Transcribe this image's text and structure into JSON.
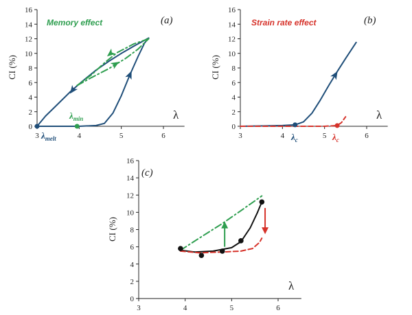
{
  "colors": {
    "blue": "#1f4e79",
    "green": "#2e9e4f",
    "red": "#d6322a",
    "black": "#111111"
  },
  "chart_data": [
    {
      "type": "line",
      "panel_label": "(a)",
      "annotation": "Memory effect",
      "ylabel": "CI (%)",
      "xlabel": "λ",
      "xlim": [
        3,
        6.5
      ],
      "ylim": [
        0,
        16
      ],
      "xticks": [
        "3",
        "4",
        "5",
        "6"
      ],
      "yticks": [
        "0",
        "2",
        "4",
        "6",
        "8",
        "10",
        "12",
        "14",
        "16"
      ],
      "markers": [
        {
          "symbol": "λ",
          "subscript": "melt",
          "x": 3.0,
          "y": 0,
          "color": "blue"
        },
        {
          "symbol": "λ",
          "subscript": "min",
          "x": 3.95,
          "y": 0,
          "color": "green"
        }
      ],
      "series": [
        {
          "style": "solid",
          "color": "blue",
          "x": [
            3.0,
            3.5,
            4.0,
            4.4,
            4.6,
            4.8,
            5.0,
            5.2,
            5.4,
            5.55,
            5.65
          ],
          "y": [
            0,
            0,
            0,
            0.1,
            0.4,
            1.8,
            4.2,
            7.0,
            9.6,
            11.4,
            12.1
          ]
        },
        {
          "style": "solid",
          "color": "blue",
          "x": [
            5.65,
            5.3,
            5.0,
            4.7,
            4.4,
            4.1,
            3.8,
            3.5,
            3.2,
            3.0
          ],
          "y": [
            12.1,
            11.0,
            10.0,
            8.9,
            7.7,
            6.3,
            4.8,
            3.1,
            1.4,
            0
          ]
        },
        {
          "style": "dashdot",
          "color": "green",
          "x": [
            3.95,
            4.3,
            4.7,
            5.1,
            5.4,
            5.65
          ],
          "y": [
            5.6,
            6.7,
            7.9,
            9.3,
            10.6,
            12.0
          ]
        },
        {
          "style": "dashdot",
          "color": "green",
          "x": [
            5.65,
            5.3,
            4.9,
            4.6,
            4.3,
            3.95
          ],
          "y": [
            12.0,
            11.3,
            10.1,
            8.7,
            7.1,
            5.6
          ]
        }
      ]
    },
    {
      "type": "line",
      "panel_label": "(b)",
      "annotation": "Strain rate effect",
      "ylabel": "CI (%)",
      "xlabel": "λ",
      "xlim": [
        3,
        6.5
      ],
      "ylim": [
        0,
        16
      ],
      "xticks": [
        "3",
        "4",
        "5",
        "6"
      ],
      "yticks": [
        "0",
        "2",
        "4",
        "6",
        "8",
        "10",
        "12",
        "14",
        "16"
      ],
      "markers": [
        {
          "symbol": "λ",
          "subscript": "c",
          "x": 4.3,
          "y": 0.2,
          "color": "blue"
        },
        {
          "symbol": "λ",
          "subscript": "c",
          "x": 5.3,
          "y": 0.1,
          "color": "red"
        }
      ],
      "series": [
        {
          "style": "solid",
          "color": "blue",
          "x": [
            3.0,
            3.5,
            4.0,
            4.3,
            4.5,
            4.7,
            4.9,
            5.1,
            5.3,
            5.5,
            5.75
          ],
          "y": [
            0,
            0.05,
            0.1,
            0.2,
            0.6,
            1.8,
            3.6,
            5.6,
            7.5,
            9.3,
            11.5
          ]
        },
        {
          "style": "dashed",
          "color": "red",
          "x": [
            3.0,
            3.5,
            4.0,
            4.5,
            5.0,
            5.3,
            5.4,
            5.5
          ],
          "y": [
            0,
            0,
            0,
            0,
            0,
            0.1,
            0.5,
            1.3
          ]
        }
      ]
    },
    {
      "type": "line",
      "panel_label": "(c)",
      "ylabel": "CI (%)",
      "xlabel": "λ",
      "xlim": [
        3,
        6.5
      ],
      "ylim": [
        0,
        16
      ],
      "xticks": [
        "3",
        "4",
        "5",
        "6"
      ],
      "yticks": [
        "0",
        "2",
        "4",
        "6",
        "8",
        "10",
        "12",
        "14",
        "16"
      ],
      "points": {
        "x": [
          3.9,
          4.35,
          4.8,
          5.2,
          5.65
        ],
        "y": [
          5.8,
          5.0,
          5.5,
          6.7,
          11.2
        ]
      },
      "series": [
        {
          "style": "solid",
          "color": "black",
          "x": [
            3.9,
            4.2,
            4.6,
            5.0,
            5.2,
            5.4,
            5.55,
            5.65
          ],
          "y": [
            5.6,
            5.4,
            5.5,
            5.9,
            6.6,
            8.2,
            9.9,
            11.2
          ]
        },
        {
          "style": "dashdot",
          "color": "green",
          "x": [
            3.9,
            4.3,
            4.8,
            5.2,
            5.65
          ],
          "y": [
            5.6,
            7.0,
            8.7,
            10.2,
            11.9
          ]
        },
        {
          "style": "dashed",
          "color": "red",
          "x": [
            3.9,
            4.3,
            4.8,
            5.2,
            5.45,
            5.6,
            5.65
          ],
          "y": [
            5.5,
            5.3,
            5.4,
            5.5,
            5.8,
            6.5,
            7.0
          ]
        }
      ]
    }
  ]
}
